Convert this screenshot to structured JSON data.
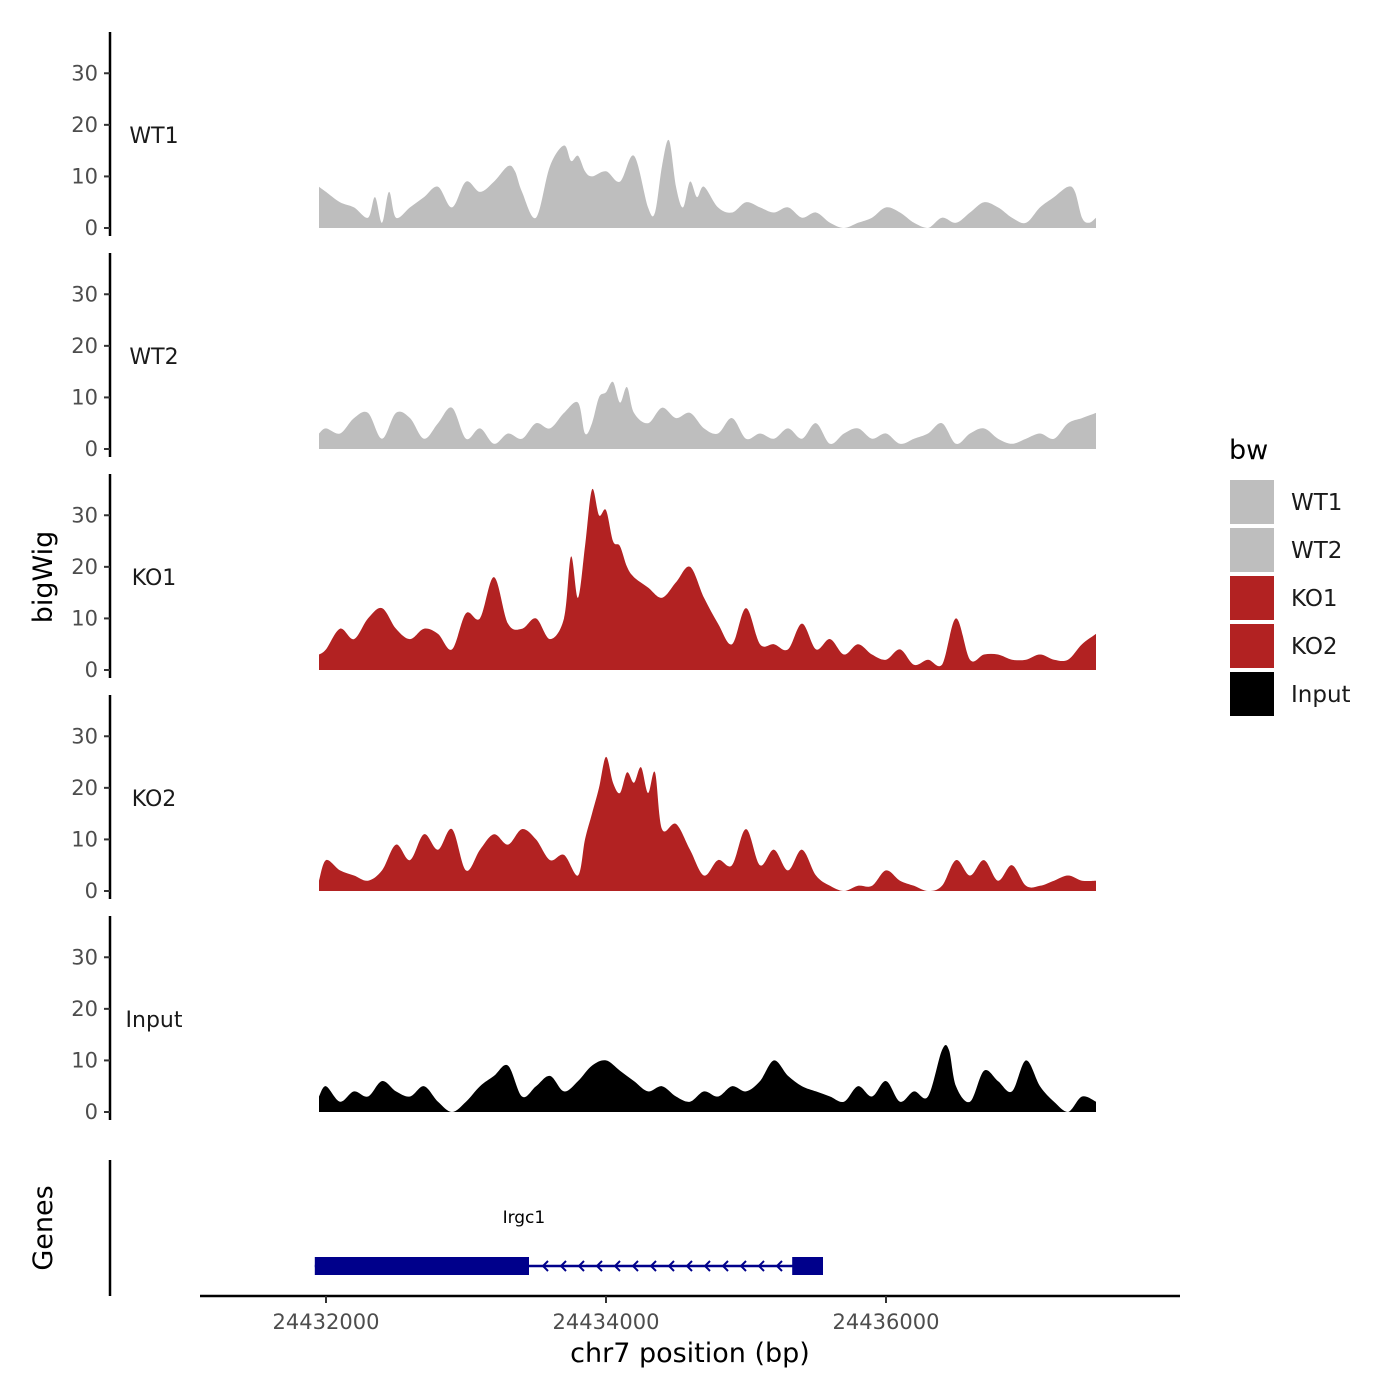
{
  "chart_data": {
    "type": "area",
    "title": "",
    "xlabel": "chr7 position (bp)",
    "ylabel": "bigWig",
    "gene_track_label": "Genes",
    "xlim": [
      24431100,
      24438100
    ],
    "x_data_range": [
      24431950,
      24437500
    ],
    "x_ticks": [
      24432000,
      24434000,
      24436000
    ],
    "x_tick_labels": [
      "24432000",
      "24434000",
      "24436000"
    ],
    "ylim": [
      0,
      38
    ],
    "y_ticks": [
      0,
      10,
      20,
      30
    ],
    "y_tick_labels": [
      "0",
      "10",
      "20",
      "30"
    ],
    "legend": {
      "title": "bw",
      "position": "right",
      "entries": [
        {
          "label": "WT1",
          "color": "#bebebe"
        },
        {
          "label": "WT2",
          "color": "#bebebe"
        },
        {
          "label": "KO1",
          "color": "#b22222"
        },
        {
          "label": "KO2",
          "color": "#b22222"
        },
        {
          "label": "Input",
          "color": "#000000"
        }
      ]
    },
    "series": [
      {
        "name": "WT1",
        "color": "#bebebe",
        "x": [
          24431950,
          24432000,
          24432100,
          24432200,
          24432300,
          24432350,
          24432400,
          24432450,
          24432500,
          24432600,
          24432700,
          24432800,
          24432900,
          24433000,
          24433100,
          24433200,
          24433300,
          24433350,
          24433400,
          24433500,
          24433600,
          24433700,
          24433750,
          24433800,
          24433850,
          24433900,
          24434000,
          24434100,
          24434200,
          24434300,
          24434350,
          24434400,
          24434450,
          24434500,
          24434550,
          24434600,
          24434650,
          24434700,
          24434800,
          24434900,
          24435000,
          24435100,
          24435200,
          24435300,
          24435400,
          24435500,
          24435600,
          24435700,
          24435800,
          24435900,
          24436000,
          24436100,
          24436200,
          24436300,
          24436400,
          24436500,
          24436600,
          24436700,
          24436800,
          24436900,
          24437000,
          24437100,
          24437200,
          24437300,
          24437350,
          24437400,
          24437450,
          24437500
        ],
        "values": [
          8,
          7,
          5,
          4,
          2,
          6,
          1,
          7,
          2,
          4,
          6,
          8,
          4,
          9,
          7,
          9,
          12,
          11,
          7,
          2,
          12,
          16,
          13,
          14,
          11,
          10,
          11,
          9,
          14,
          4,
          3,
          12,
          17,
          8,
          4,
          9,
          6,
          8,
          4,
          3,
          5,
          4,
          3,
          4,
          2,
          3,
          1,
          0,
          1,
          2,
          4,
          3,
          1,
          0,
          2,
          1,
          3,
          5,
          4,
          2,
          1,
          4,
          6,
          8,
          7,
          2,
          1,
          2
        ]
      },
      {
        "name": "WT2",
        "color": "#bebebe",
        "x": [
          24431950,
          24432000,
          24432100,
          24432200,
          24432300,
          24432400,
          24432500,
          24432600,
          24432700,
          24432800,
          24432900,
          24433000,
          24433100,
          24433200,
          24433300,
          24433400,
          24433500,
          24433600,
          24433700,
          24433800,
          24433850,
          24433900,
          24433950,
          24434000,
          24434050,
          24434100,
          24434150,
          24434200,
          24434300,
          24434400,
          24434500,
          24434600,
          24434700,
          24434800,
          24434900,
          24435000,
          24435100,
          24435200,
          24435300,
          24435400,
          24435500,
          24435600,
          24435700,
          24435800,
          24435900,
          24436000,
          24436100,
          24436200,
          24436300,
          24436400,
          24436500,
          24436600,
          24436700,
          24436800,
          24436900,
          24437000,
          24437100,
          24437200,
          24437300,
          24437400,
          24437500
        ],
        "values": [
          3,
          4,
          3,
          6,
          7,
          2,
          7,
          6,
          2,
          5,
          8,
          2,
          4,
          1,
          3,
          2,
          5,
          4,
          7,
          9,
          3,
          5,
          10,
          11,
          13,
          9,
          12,
          7,
          5,
          8,
          6,
          7,
          4,
          3,
          6,
          2,
          3,
          2,
          4,
          2,
          5,
          1,
          3,
          4,
          2,
          3,
          1,
          2,
          3,
          5,
          1,
          3,
          4,
          2,
          1,
          2,
          3,
          2,
          5,
          6,
          7
        ]
      },
      {
        "name": "KO1",
        "color": "#b22222",
        "x": [
          24431950,
          24432000,
          24432100,
          24432200,
          24432300,
          24432400,
          24432500,
          24432600,
          24432700,
          24432800,
          24432900,
          24433000,
          24433100,
          24433200,
          24433300,
          24433400,
          24433500,
          24433600,
          24433700,
          24433750,
          24433800,
          24433850,
          24433900,
          24433950,
          24434000,
          24434050,
          24434100,
          24434150,
          24434200,
          24434300,
          24434400,
          24434500,
          24434600,
          24434700,
          24434800,
          24434900,
          24435000,
          24435100,
          24435200,
          24435300,
          24435400,
          24435500,
          24435600,
          24435700,
          24435800,
          24435900,
          24436000,
          24436100,
          24436200,
          24436300,
          24436400,
          24436500,
          24436600,
          24436700,
          24436800,
          24436900,
          24437000,
          24437100,
          24437200,
          24437300,
          24437400,
          24437500
        ],
        "values": [
          3,
          4,
          8,
          6,
          10,
          12,
          8,
          6,
          8,
          7,
          4,
          11,
          10,
          18,
          9,
          8,
          10,
          6,
          10,
          22,
          14,
          24,
          35,
          30,
          31,
          25,
          24,
          20,
          18,
          16,
          14,
          17,
          20,
          14,
          9,
          5,
          12,
          5,
          5,
          4,
          9,
          4,
          6,
          3,
          5,
          3,
          2,
          4,
          1,
          2,
          1,
          10,
          2,
          3,
          3,
          2,
          2,
          3,
          2,
          2,
          5,
          7
        ]
      },
      {
        "name": "KO2",
        "color": "#b22222",
        "x": [
          24431950,
          24432000,
          24432100,
          24432200,
          24432300,
          24432400,
          24432500,
          24432600,
          24432700,
          24432800,
          24432900,
          24433000,
          24433100,
          24433200,
          24433300,
          24433400,
          24433500,
          24433600,
          24433700,
          24433800,
          24433850,
          24433900,
          24433950,
          24434000,
          24434050,
          24434100,
          24434150,
          24434200,
          24434250,
          24434300,
          24434350,
          24434400,
          24434500,
          24434600,
          24434700,
          24434800,
          24434900,
          24435000,
          24435100,
          24435200,
          24435300,
          24435400,
          24435500,
          24435600,
          24435700,
          24435800,
          24435900,
          24436000,
          24436100,
          24436200,
          24436300,
          24436400,
          24436500,
          24436600,
          24436700,
          24436800,
          24436900,
          24437000,
          24437100,
          24437200,
          24437300,
          24437400,
          24437500
        ],
        "values": [
          2,
          6,
          4,
          3,
          2,
          4,
          9,
          6,
          11,
          8,
          12,
          4,
          8,
          11,
          9,
          12,
          10,
          6,
          7,
          3,
          10,
          15,
          20,
          26,
          21,
          19,
          23,
          21,
          24,
          19,
          23,
          12,
          13,
          8,
          3,
          6,
          5,
          12,
          5,
          8,
          4,
          8,
          3,
          1,
          0,
          1,
          1,
          4,
          2,
          1,
          0,
          1,
          6,
          3,
          6,
          2,
          5,
          1,
          1,
          2,
          3,
          2,
          2
        ]
      },
      {
        "name": "Input",
        "color": "#000000",
        "x": [
          24431950,
          24432000,
          24432100,
          24432200,
          24432300,
          24432400,
          24432500,
          24432600,
          24432700,
          24432800,
          24432900,
          24433000,
          24433100,
          24433200,
          24433300,
          24433400,
          24433500,
          24433600,
          24433700,
          24433800,
          24433900,
          24434000,
          24434100,
          24434200,
          24434300,
          24434400,
          24434500,
          24434600,
          24434700,
          24434800,
          24434900,
          24435000,
          24435100,
          24435200,
          24435300,
          24435400,
          24435500,
          24435600,
          24435700,
          24435800,
          24435900,
          24436000,
          24436100,
          24436200,
          24436300,
          24436400,
          24436450,
          24436500,
          24436600,
          24436700,
          24436800,
          24436900,
          24437000,
          24437100,
          24437200,
          24437300,
          24437400,
          24437500
        ],
        "values": [
          3,
          5,
          2,
          4,
          3,
          6,
          4,
          3,
          5,
          2,
          0,
          2,
          5,
          7,
          9,
          3,
          5,
          7,
          4,
          6,
          9,
          10,
          8,
          6,
          4,
          5,
          3,
          2,
          4,
          3,
          5,
          4,
          6,
          10,
          7,
          5,
          4,
          3,
          2,
          5,
          3,
          6,
          2,
          4,
          3,
          12,
          12,
          5,
          2,
          8,
          6,
          4,
          10,
          5,
          2,
          0,
          3,
          2
        ]
      }
    ],
    "genes": [
      {
        "name": "Irgc1",
        "start": 24431920,
        "end": 24435550,
        "strand": "-",
        "exons": [
          [
            24431920,
            24433450
          ],
          [
            24435330,
            24435550
          ]
        ]
      }
    ]
  }
}
